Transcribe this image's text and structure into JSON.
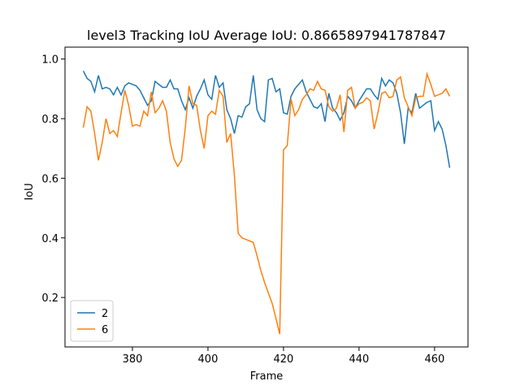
{
  "chart_data": {
    "type": "line",
    "title": "level3 Tracking IoU   Average IoU: 0.8665897941787847",
    "xlabel": "Frame",
    "ylabel": "IoU",
    "x": [
      367,
      368,
      369,
      370,
      371,
      372,
      373,
      374,
      375,
      376,
      377,
      378,
      379,
      380,
      381,
      382,
      383,
      384,
      385,
      386,
      387,
      388,
      389,
      390,
      391,
      392,
      393,
      394,
      395,
      396,
      397,
      398,
      399,
      400,
      401,
      402,
      403,
      404,
      405,
      406,
      407,
      408,
      409,
      410,
      411,
      412,
      413,
      414,
      415,
      416,
      417,
      418,
      419,
      420,
      421,
      422,
      423,
      424,
      425,
      426,
      427,
      428,
      429,
      430,
      431,
      432,
      433,
      434,
      435,
      436,
      437,
      438,
      439,
      440,
      441,
      442,
      443,
      444,
      445,
      446,
      447,
      448,
      449,
      450,
      451,
      452,
      453,
      454,
      455,
      456,
      457,
      458,
      459,
      460,
      461,
      462,
      463,
      464
    ],
    "series": [
      {
        "name": "2",
        "color": "#1f77b4",
        "values": [
          0.96,
          0.935,
          0.925,
          0.89,
          0.945,
          0.9,
          0.905,
          0.9,
          0.88,
          0.905,
          0.88,
          0.91,
          0.92,
          0.915,
          0.91,
          0.895,
          0.87,
          0.845,
          0.86,
          0.925,
          0.915,
          0.905,
          0.905,
          0.93,
          0.9,
          0.9,
          0.86,
          0.83,
          0.87,
          0.835,
          0.875,
          0.9,
          0.93,
          0.88,
          0.865,
          0.945,
          0.905,
          0.92,
          0.83,
          0.8,
          0.75,
          0.81,
          0.805,
          0.84,
          0.85,
          0.945,
          0.83,
          0.8,
          0.79,
          0.93,
          0.935,
          0.89,
          0.9,
          0.82,
          0.815,
          0.875,
          0.9,
          0.915,
          0.93,
          0.89,
          0.865,
          0.84,
          0.835,
          0.85,
          0.79,
          0.885,
          0.835,
          0.82,
          0.795,
          0.82,
          0.875,
          0.86,
          0.835,
          0.86,
          0.88,
          0.9,
          0.9,
          0.88,
          0.865,
          0.935,
          0.91,
          0.93,
          0.92,
          0.885,
          0.82,
          0.715,
          0.835,
          0.82,
          0.885,
          0.835,
          0.845,
          0.855,
          0.86,
          0.76,
          0.79,
          0.765,
          0.71,
          0.635
        ]
      },
      {
        "name": "6",
        "color": "#ff7f0e",
        "values": [
          0.77,
          0.84,
          0.825,
          0.75,
          0.66,
          0.72,
          0.8,
          0.75,
          0.76,
          0.74,
          0.82,
          0.895,
          0.845,
          0.775,
          0.78,
          0.775,
          0.825,
          0.81,
          0.89,
          0.82,
          0.835,
          0.86,
          0.825,
          0.72,
          0.665,
          0.64,
          0.66,
          0.77,
          0.91,
          0.85,
          0.845,
          0.76,
          0.7,
          0.81,
          0.825,
          0.815,
          0.895,
          0.875,
          0.72,
          0.75,
          0.61,
          0.415,
          0.4,
          0.395,
          0.39,
          0.385,
          0.34,
          0.29,
          0.25,
          0.215,
          0.18,
          0.13,
          0.077,
          0.695,
          0.71,
          0.865,
          0.81,
          0.83,
          0.865,
          0.88,
          0.9,
          0.895,
          0.925,
          0.9,
          0.895,
          0.84,
          0.825,
          0.835,
          0.88,
          0.755,
          0.895,
          0.905,
          0.835,
          0.85,
          0.855,
          0.87,
          0.86,
          0.765,
          0.82,
          0.885,
          0.89,
          0.87,
          0.875,
          0.93,
          0.94,
          0.87,
          0.84,
          0.81,
          0.87,
          0.875,
          0.875,
          0.95,
          0.915,
          0.875,
          0.88,
          0.885,
          0.9,
          0.875
        ]
      }
    ],
    "xlim": [
      362.15,
      468.85
    ],
    "xticks": [
      380,
      400,
      420,
      440,
      460
    ],
    "ylim": [
      0.034,
      1.04
    ],
    "yticks": [
      0.2,
      0.4,
      0.6,
      0.8,
      {
        "value": 1,
        "label": "1.0"
      }
    ],
    "legend": "lower left"
  }
}
